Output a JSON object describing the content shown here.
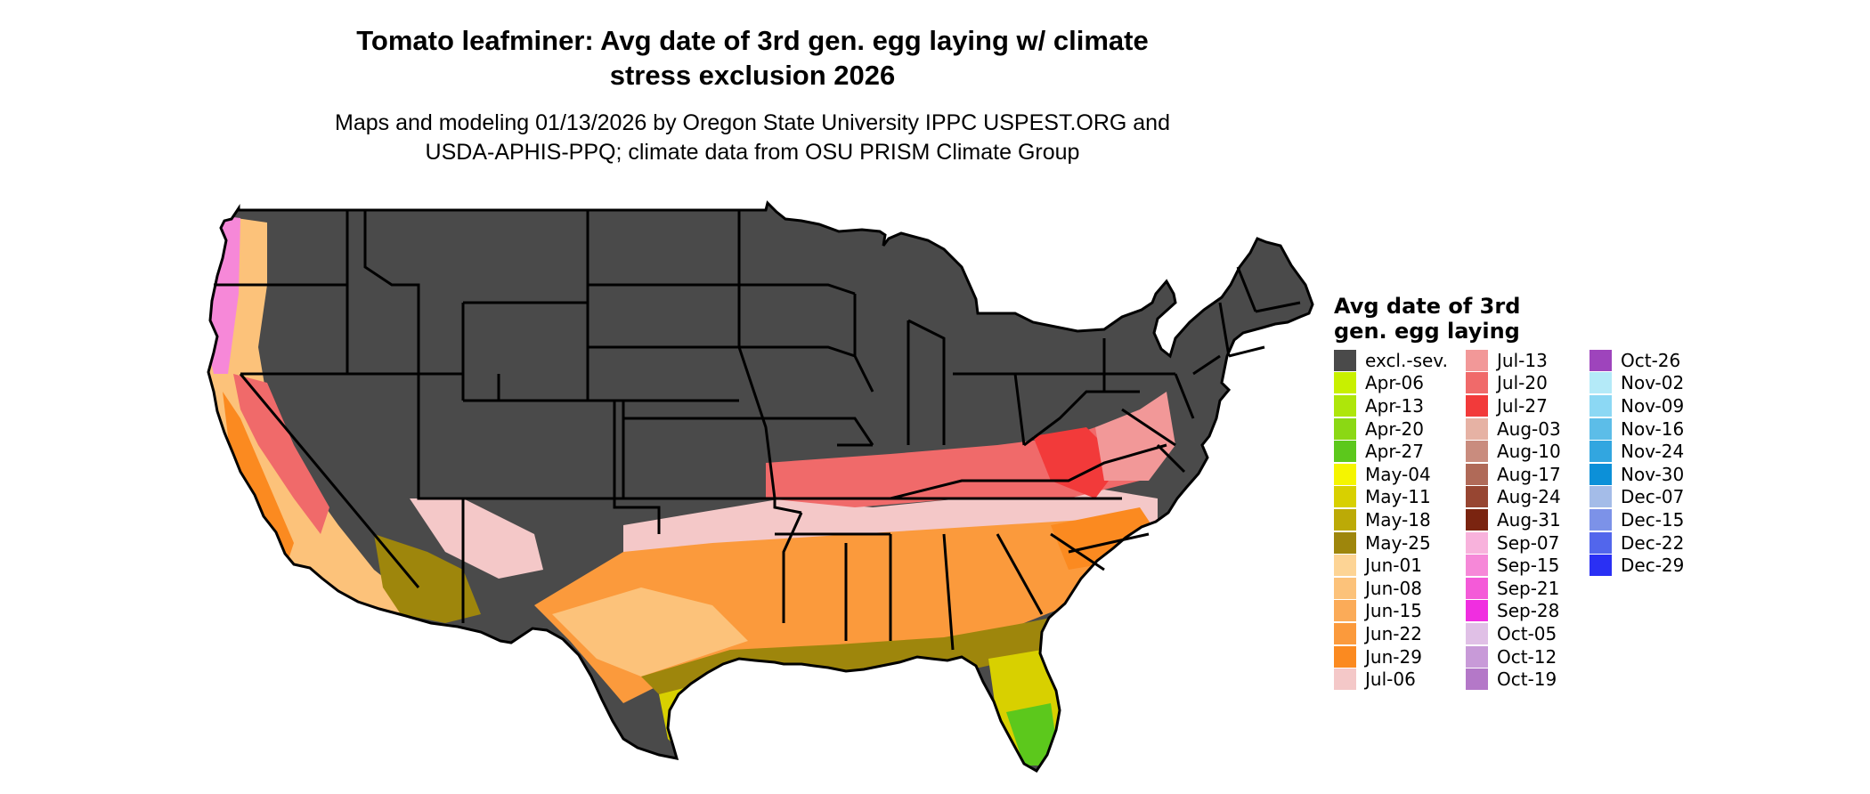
{
  "title": "Tomato leafminer: Avg date of 3rd gen. egg laying w/ climate stress exclusion 2026",
  "title_lines": [
    "Tomato leafminer: Avg date of 3rd gen. egg laying w/ climate",
    "stress exclusion 2026"
  ],
  "subtitle_lines": [
    "Maps and modeling 01/13/2026 by Oregon State University IPPC USPEST.ORG and",
    "USDA-APHIS-PPQ; climate data from OSU PRISM Climate Group"
  ],
  "legend": {
    "title_lines": [
      "Avg date of 3rd",
      "gen. egg laying"
    ],
    "columns": [
      [
        {
          "label": "excl.-sev.",
          "color": "#4a4a4a"
        },
        {
          "label": "Apr-06",
          "color": "#c8f000"
        },
        {
          "label": "Apr-13",
          "color": "#aee60a"
        },
        {
          "label": "Apr-20",
          "color": "#8bd814"
        },
        {
          "label": "Apr-27",
          "color": "#5cc81c"
        },
        {
          "label": "May-04",
          "color": "#f5f500"
        },
        {
          "label": "May-11",
          "color": "#d8d000"
        },
        {
          "label": "May-18",
          "color": "#bcaa06"
        },
        {
          "label": "May-25",
          "color": "#9e860c"
        },
        {
          "label": "Jun-01",
          "color": "#fdd495"
        },
        {
          "label": "Jun-08",
          "color": "#fcc27a"
        },
        {
          "label": "Jun-15",
          "color": "#fbab58"
        },
        {
          "label": "Jun-22",
          "color": "#fb9a3c"
        },
        {
          "label": "Jun-29",
          "color": "#fb8a20"
        },
        {
          "label": "Jul-06",
          "color": "#f4c8c8"
        }
      ],
      [
        {
          "label": "Jul-13",
          "color": "#f29898"
        },
        {
          "label": "Jul-20",
          "color": "#f06a6a"
        },
        {
          "label": "Jul-27",
          "color": "#f23a3a"
        },
        {
          "label": "Aug-03",
          "color": "#e6b2a4"
        },
        {
          "label": "Aug-10",
          "color": "#c98c7e"
        },
        {
          "label": "Aug-17",
          "color": "#b06a58"
        },
        {
          "label": "Aug-24",
          "color": "#974632"
        },
        {
          "label": "Aug-31",
          "color": "#7a2410"
        },
        {
          "label": "Sep-07",
          "color": "#f8b2dc"
        },
        {
          "label": "Sep-15",
          "color": "#f688d8"
        },
        {
          "label": "Sep-21",
          "color": "#f45ad8"
        },
        {
          "label": "Sep-28",
          "color": "#f02ee0"
        },
        {
          "label": "Oct-05",
          "color": "#e0c0e6"
        },
        {
          "label": "Oct-12",
          "color": "#c89ad8"
        },
        {
          "label": "Oct-19",
          "color": "#b478c8"
        }
      ],
      [
        {
          "label": "Oct-26",
          "color": "#9e44bc"
        },
        {
          "label": "Nov-02",
          "color": "#b4eaf8"
        },
        {
          "label": "Nov-09",
          "color": "#8cd8f4"
        },
        {
          "label": "Nov-16",
          "color": "#5cbde8"
        },
        {
          "label": "Nov-24",
          "color": "#32a6e0"
        },
        {
          "label": "Nov-30",
          "color": "#0c90d8"
        },
        {
          "label": "Dec-07",
          "color": "#a4bce8"
        },
        {
          "label": "Dec-15",
          "color": "#7c92e8"
        },
        {
          "label": "Dec-22",
          "color": "#5266ec"
        },
        {
          "label": "Dec-29",
          "color": "#2a30f4"
        }
      ]
    ]
  }
}
